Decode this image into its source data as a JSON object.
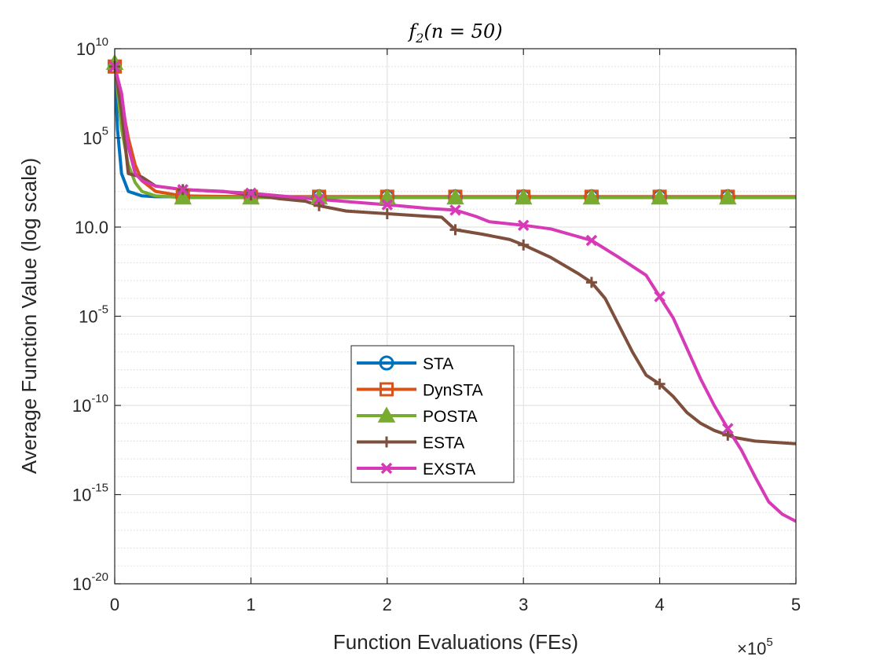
{
  "chart_data": {
    "type": "line",
    "title": "f",
    "title_subscript": "2",
    "title_tail": "(n = 50)",
    "xlabel": "Function Evaluations (FEs)",
    "ylabel": "Average Function Value (log scale)",
    "x_multiplier": {
      "base": "×10",
      "exp": "5"
    },
    "xlim": [
      0,
      500000
    ],
    "ylim_log10": [
      -20,
      10
    ],
    "x_ticks": [
      {
        "value": 0,
        "label": "0"
      },
      {
        "value": 100000,
        "label": "1"
      },
      {
        "value": 200000,
        "label": "2"
      },
      {
        "value": 300000,
        "label": "3"
      },
      {
        "value": 400000,
        "label": "4"
      },
      {
        "value": 500000,
        "label": "5"
      }
    ],
    "y_ticks": [
      {
        "exp10": 10,
        "base": "10",
        "exp": "10"
      },
      {
        "exp10": 5,
        "base": "10",
        "exp": "5"
      },
      {
        "exp10": 0,
        "base": "10",
        "exp": "0",
        "plain": "10",
        "plain_suffix": "0"
      },
      {
        "exp10": -5,
        "base": "10",
        "exp": "-5"
      },
      {
        "exp10": -10,
        "base": "10",
        "exp": "-10"
      },
      {
        "exp10": -15,
        "base": "10",
        "exp": "-15"
      },
      {
        "exp10": -20,
        "base": "10",
        "exp": "-20"
      }
    ],
    "grid": true,
    "legend_position": "center-left",
    "series": [
      {
        "name": "STA",
        "color": "#0072BD",
        "marker": "circle",
        "x": [
          0,
          2000,
          5000,
          10000,
          20000,
          30000,
          50000,
          100000,
          200000,
          300000,
          400000,
          500000
        ],
        "log10_y": [
          9.0,
          5.5,
          3.0,
          2.0,
          1.75,
          1.7,
          1.7,
          1.7,
          1.7,
          1.7,
          1.7,
          1.7
        ],
        "marker_x": [
          50000,
          100000,
          150000,
          200000,
          250000,
          300000,
          350000,
          400000,
          450000
        ]
      },
      {
        "name": "DynSTA",
        "color": "#D95319",
        "marker": "square",
        "x": [
          0,
          5000,
          10000,
          15000,
          20000,
          30000,
          50000,
          100000,
          200000,
          300000,
          400000,
          500000
        ],
        "log10_y": [
          9.0,
          7.0,
          5.0,
          3.5,
          2.6,
          2.0,
          1.75,
          1.7,
          1.7,
          1.7,
          1.7,
          1.7
        ],
        "marker_x": [
          0,
          50000,
          100000,
          150000,
          200000,
          250000,
          300000,
          350000,
          400000,
          450000
        ]
      },
      {
        "name": "POSTA",
        "color": "#77AC30",
        "marker": "triangle",
        "x": [
          0,
          5000,
          10000,
          15000,
          20000,
          30000,
          50000,
          100000,
          200000,
          300000,
          400000,
          500000
        ],
        "log10_y": [
          9.2,
          5.5,
          3.5,
          2.5,
          2.0,
          1.75,
          1.65,
          1.65,
          1.65,
          1.65,
          1.65,
          1.65
        ],
        "marker_x": [
          0,
          50000,
          100000,
          150000,
          200000,
          250000,
          300000,
          350000,
          400000,
          450000
        ]
      },
      {
        "name": "ESTA",
        "color": "#7E4F3C",
        "marker": "plus",
        "x": [
          0,
          5000,
          10000,
          20000,
          30000,
          50000,
          80000,
          100000,
          120000,
          140000,
          150000,
          170000,
          200000,
          220000,
          240000,
          250000,
          270000,
          290000,
          300000,
          320000,
          340000,
          350000,
          360000,
          370000,
          380000,
          390000,
          400000,
          410000,
          420000,
          430000,
          440000,
          455000,
          470000,
          500000
        ],
        "log10_y": [
          9.0,
          6.5,
          3.0,
          2.8,
          2.3,
          2.1,
          2.0,
          1.8,
          1.6,
          1.45,
          1.2,
          0.9,
          0.75,
          0.65,
          0.55,
          -0.15,
          -0.4,
          -0.7,
          -1.0,
          -1.7,
          -2.6,
          -3.1,
          -4.0,
          -5.5,
          -7.0,
          -8.3,
          -8.8,
          -9.5,
          -10.4,
          -11.0,
          -11.4,
          -11.8,
          -12.0,
          -12.15
        ],
        "marker_x": [
          0,
          50000,
          100000,
          150000,
          200000,
          250000,
          300000,
          350000,
          400000,
          450000
        ]
      },
      {
        "name": "EXSTA",
        "color": "#D63AB7",
        "marker": "x",
        "x": [
          0,
          5000,
          10000,
          15000,
          20000,
          30000,
          50000,
          100000,
          150000,
          200000,
          230000,
          250000,
          265000,
          275000,
          300000,
          320000,
          350000,
          370000,
          390000,
          400000,
          410000,
          420000,
          430000,
          440000,
          450000,
          460000,
          470000,
          480000,
          490000,
          500000
        ],
        "log10_y": [
          9.0,
          7.5,
          4.5,
          3.0,
          2.6,
          2.3,
          2.1,
          1.9,
          1.55,
          1.25,
          1.05,
          0.95,
          0.6,
          0.3,
          0.1,
          -0.1,
          -0.75,
          -1.7,
          -2.7,
          -3.9,
          -5.1,
          -6.8,
          -8.5,
          -10.0,
          -11.3,
          -12.5,
          -14.0,
          -15.4,
          -16.1,
          -16.5
        ],
        "marker_x": [
          0,
          50000,
          100000,
          150000,
          200000,
          250000,
          300000,
          350000,
          400000,
          450000
        ]
      }
    ]
  }
}
